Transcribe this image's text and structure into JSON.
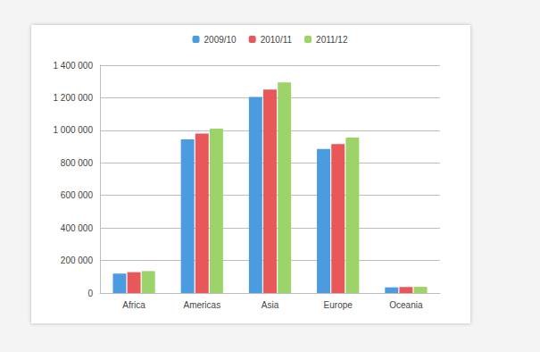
{
  "chart_data": {
    "type": "bar",
    "categories": [
      "Africa",
      "Americas",
      "Asia",
      "Europe",
      "Oceania"
    ],
    "series": [
      {
        "name": "2009/10",
        "color": "#4a9be0",
        "values": [
          120000,
          945000,
          1205000,
          885000,
          35000
        ]
      },
      {
        "name": "2010/11",
        "color": "#e8585a",
        "values": [
          128000,
          980000,
          1250000,
          915000,
          37000
        ]
      },
      {
        "name": "2011/12",
        "color": "#9dd46a",
        "values": [
          135000,
          1010000,
          1295000,
          955000,
          38000
        ]
      }
    ],
    "ylim": [
      0,
      1400000
    ],
    "yticks": [
      0,
      {
        "value": 200000,
        "label": "200 000"
      },
      {
        "value": 400000,
        "label": "400 000"
      },
      {
        "value": 600000,
        "label": "600 000"
      },
      {
        "value": 800000,
        "label": "800 000"
      },
      {
        "value": 1000000,
        "label": "1 000 000"
      },
      {
        "value": 1200000,
        "label": "1 200 000"
      },
      {
        "value": 1400000,
        "label": "1 400 000"
      }
    ],
    "grid": true,
    "legend": "top"
  }
}
